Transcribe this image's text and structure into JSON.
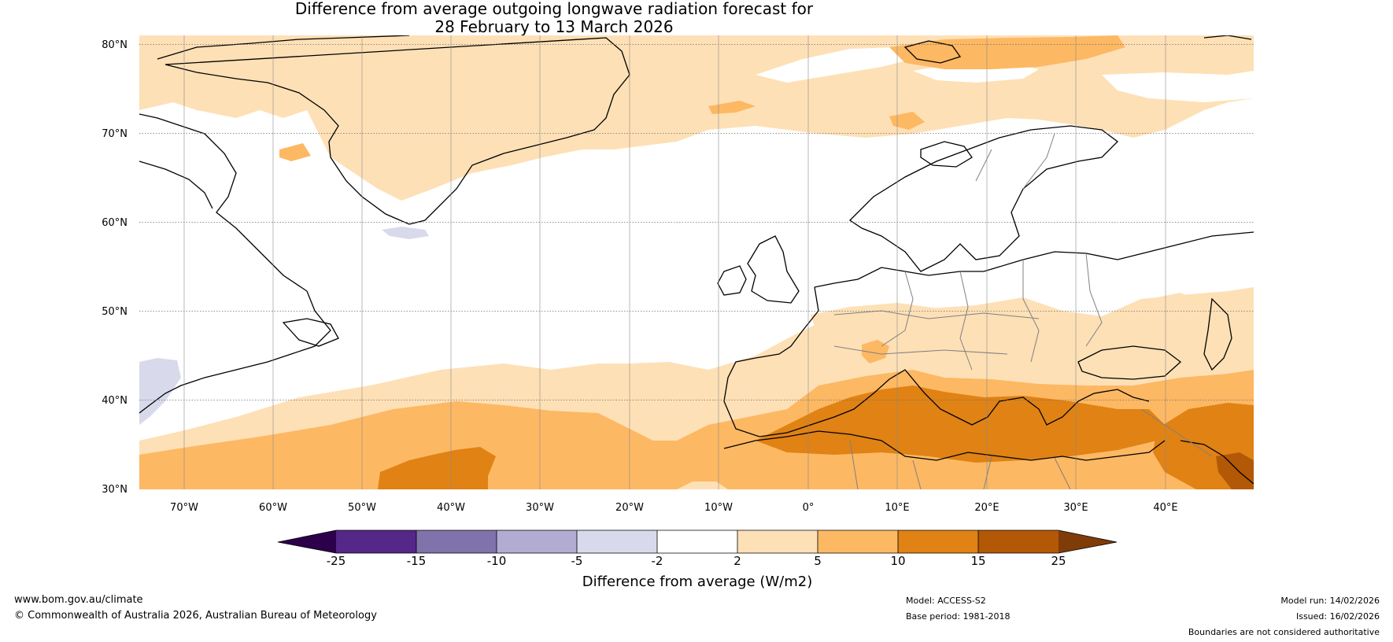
{
  "title": {
    "line1": "Difference from average outgoing longwave radiation forecast for",
    "line2": "28 February to 13 March 2026"
  },
  "map": {
    "lat_labels": [
      "80°N",
      "70°N",
      "60°N",
      "50°N",
      "40°N",
      "30°N"
    ],
    "lon_labels": [
      "70°W",
      "60°W",
      "50°W",
      "40°W",
      "30°W",
      "20°W",
      "10°W",
      "0°",
      "10°E",
      "20°E",
      "30°E",
      "40°E"
    ],
    "lat_range": [
      30,
      80
    ],
    "lon_range": [
      -75,
      50
    ]
  },
  "colorbar": {
    "title": "Difference from average (W/m2)",
    "tick_labels": [
      "-25",
      "-15",
      "-10",
      "-5",
      "-2",
      "2",
      "5",
      "10",
      "15",
      "25"
    ],
    "colors": [
      "#2d004b",
      "#542788",
      "#8073ac",
      "#b2abd2",
      "#d8daeb",
      "#ffffff",
      "#fee0b6",
      "#fdb863",
      "#e08214",
      "#b35806",
      "#7f3b08"
    ]
  },
  "footer": {
    "website": "www.bom.gov.au/climate",
    "copyright": "© Commonwealth of Australia 2026, Australian Bureau of Meteorology",
    "model": "Model: ACCESS-S2",
    "base_period": "Base period: 1981-2018",
    "model_run": "Model run: 14/02/2026",
    "issued": "Issued: 16/02/2026",
    "disclaimer": "Boundaries are not considered authoritative"
  }
}
